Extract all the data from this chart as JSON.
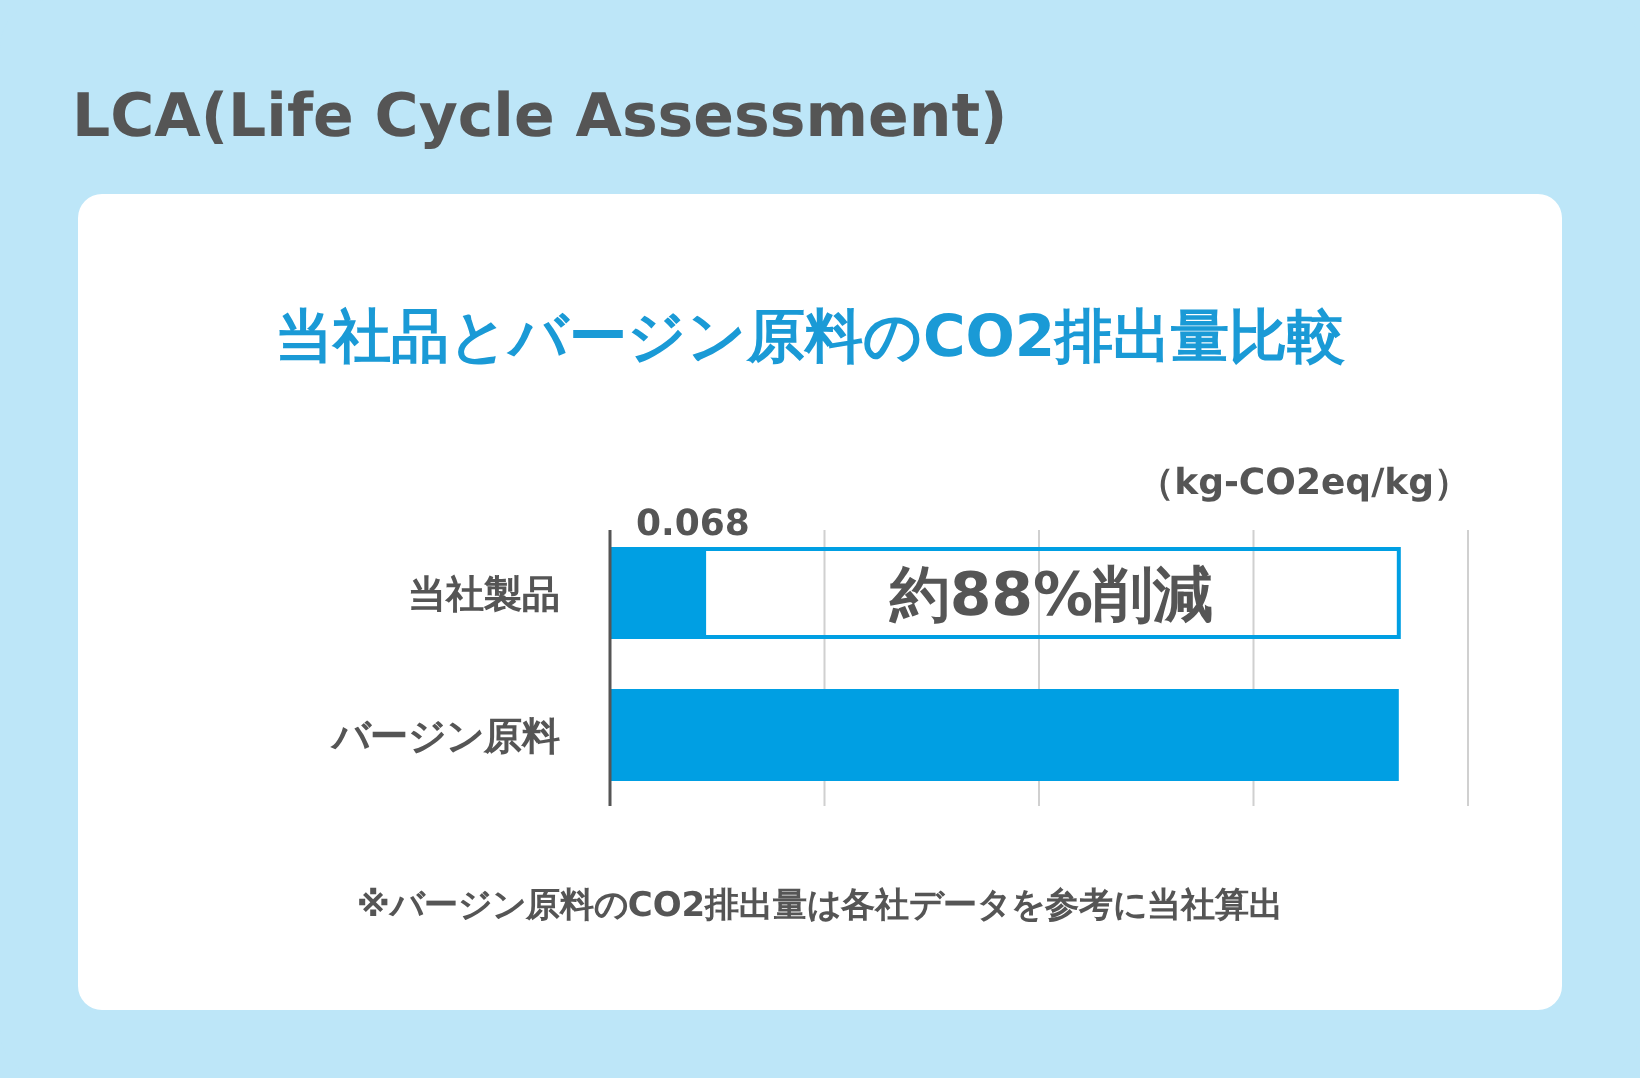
{
  "chart_data": {
    "type": "bar",
    "orientation": "horizontal",
    "title": "LCA(Life Cycle Assessment)",
    "subtitle": "当社品とバージン原料のCO2排出量比較",
    "xlabel": "（kg-CO2eq/kg）",
    "categories": [
      "当社製品",
      "バージン原料"
    ],
    "values": [
      0.068,
      0.57
    ],
    "value_labels": [
      "0.068",
      null
    ],
    "color": "#009fe3",
    "xlim": [
      0,
      0.62
    ],
    "xticks": [
      {
        "value": 0,
        "label": null
      },
      {
        "value": 0.155,
        "label": null
      },
      {
        "value": 0.31,
        "label": null
      },
      {
        "value": 0.465,
        "label": null
      },
      {
        "value": 0.62,
        "label": null
      }
    ],
    "grid": "x",
    "annotations": [
      "約88%削減",
      "※バージン原料のCO2排出量は各社データを参考に当社算出"
    ]
  }
}
